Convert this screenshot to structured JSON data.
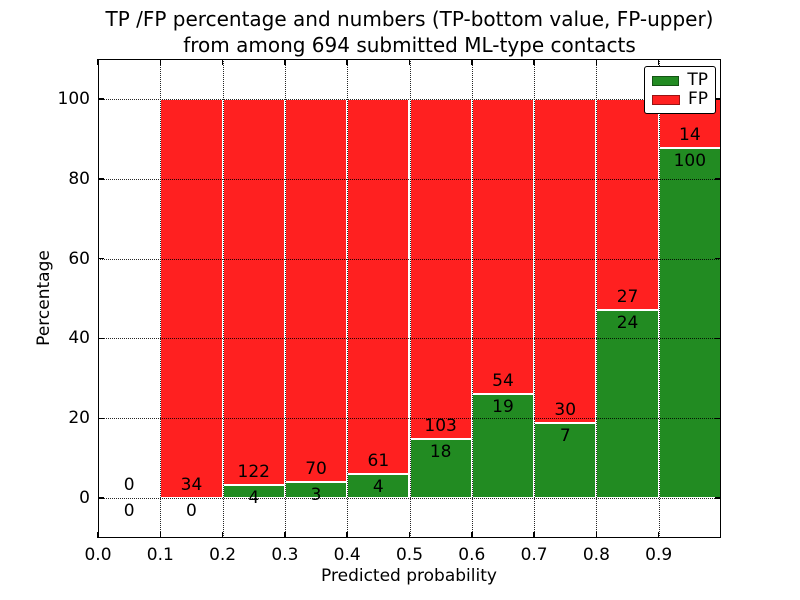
{
  "figure": {
    "title_line1": "TP /FP percentage and numbers (TP-bottom value, FP-upper)",
    "title_line2": "from among 694 submitted ML-type contacts"
  },
  "chart_data": {
    "type": "bar",
    "stacked": true,
    "title": "TP /FP percentage and numbers (TP-bottom value, FP-upper) from among 694 submitted ML-type contacts",
    "xlabel": "Predicted probability",
    "ylabel": "Percentage",
    "xlim": [
      0.0,
      1.0
    ],
    "ylim": [
      -10,
      110
    ],
    "grid": true,
    "legend_position": "upper right",
    "total_contacts": 694,
    "legend": [
      {
        "name": "TP",
        "label": "TP",
        "color": "#228b22"
      },
      {
        "name": "FP",
        "label": "FP",
        "color": "#ff2020"
      }
    ],
    "xticks": [
      "0.0",
      "0.1",
      "0.2",
      "0.3",
      "0.4",
      "0.5",
      "0.6",
      "0.7",
      "0.8",
      "0.9"
    ],
    "yticks": [
      "0",
      "20",
      "40",
      "60",
      "80",
      "100"
    ],
    "bins": [
      {
        "range": [
          0.0,
          0.1
        ],
        "tp": 0,
        "fp": 0,
        "tp_pct": 0.0
      },
      {
        "range": [
          0.1,
          0.2
        ],
        "tp": 0,
        "fp": 34,
        "tp_pct": 0.0
      },
      {
        "range": [
          0.2,
          0.3
        ],
        "tp": 4,
        "fp": 122,
        "tp_pct": 3.17
      },
      {
        "range": [
          0.3,
          0.4
        ],
        "tp": 3,
        "fp": 70,
        "tp_pct": 4.11
      },
      {
        "range": [
          0.4,
          0.5
        ],
        "tp": 4,
        "fp": 61,
        "tp_pct": 6.15
      },
      {
        "range": [
          0.5,
          0.6
        ],
        "tp": 18,
        "fp": 103,
        "tp_pct": 14.88
      },
      {
        "range": [
          0.6,
          0.7
        ],
        "tp": 19,
        "fp": 54,
        "tp_pct": 26.03
      },
      {
        "range": [
          0.7,
          0.8
        ],
        "tp": 7,
        "fp": 30,
        "tp_pct": 18.92
      },
      {
        "range": [
          0.8,
          0.9
        ],
        "tp": 24,
        "fp": 27,
        "tp_pct": 47.06
      },
      {
        "range": [
          0.9,
          1.0
        ],
        "tp": 100,
        "fp": 14,
        "tp_pct": 87.72
      }
    ]
  }
}
